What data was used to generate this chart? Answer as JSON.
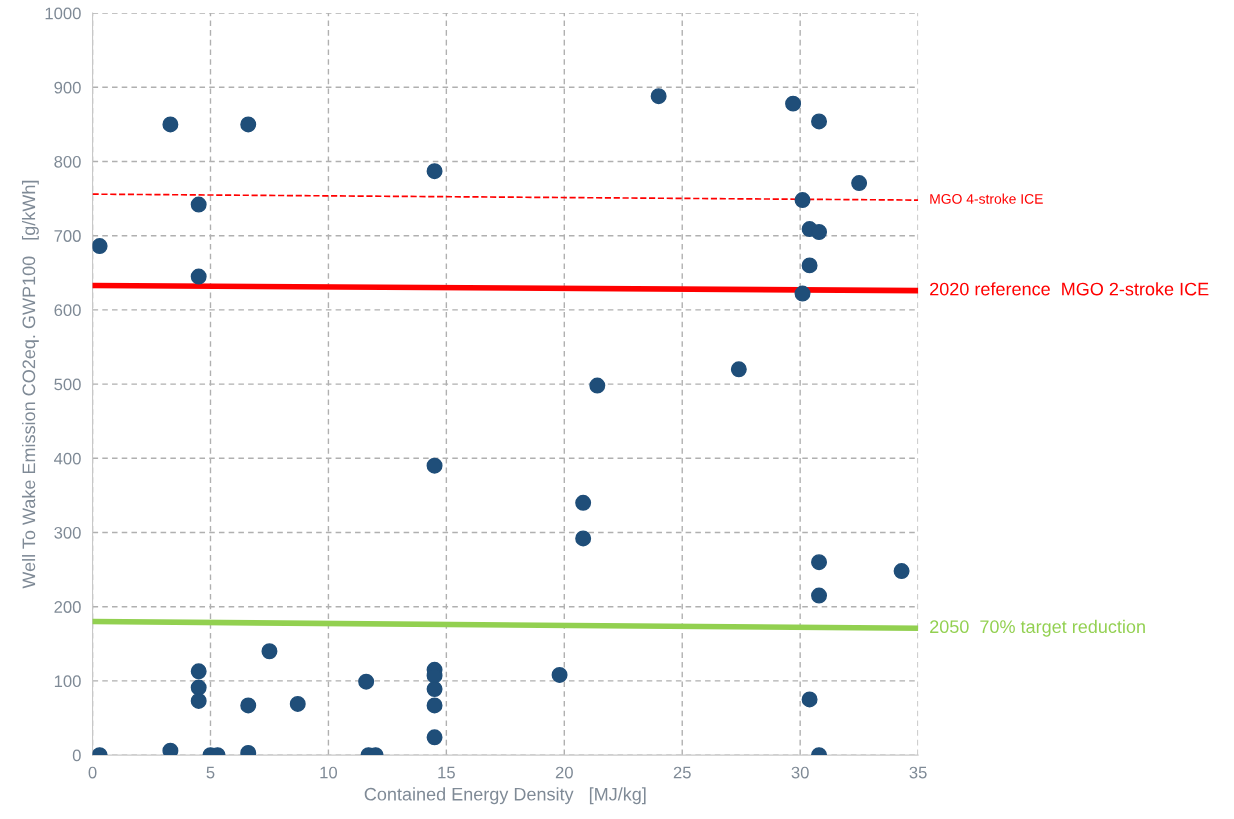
{
  "chart_data": {
    "type": "scatter",
    "xlabel": "Contained Energy Density   [MJ/kg]",
    "ylabel": "Well To Wake Emission CO2eq. GWP100   [g/kWh]",
    "xlim": [
      0,
      35
    ],
    "ylim": [
      0,
      1000
    ],
    "xticks": [
      0,
      5,
      10,
      15,
      20,
      25,
      30,
      35
    ],
    "yticks": [
      0,
      100,
      200,
      300,
      400,
      500,
      600,
      700,
      800,
      900,
      1000
    ],
    "grid": true,
    "series": [
      {
        "color": "#1f4e79",
        "marker": "circle",
        "x": [
          0.3,
          0.3,
          3.3,
          3.3,
          4.5,
          4.5,
          4.5,
          4.5,
          4.5,
          5.0,
          5.3,
          6.6,
          6.6,
          6.6,
          7.5,
          8.7,
          11.6,
          11.7,
          12.0,
          14.5,
          14.5,
          14.5,
          14.5,
          14.5,
          14.5,
          14.5,
          19.8,
          20.8,
          20.8,
          21.4,
          24.0,
          27.4,
          29.7,
          30.1,
          30.1,
          30.4,
          30.4,
          30.4,
          30.8,
          30.8,
          30.8,
          30.8,
          30.8,
          32.5,
          34.3
        ],
        "values": [
          0,
          686,
          850,
          6,
          742,
          645,
          113,
          91,
          73,
          0,
          0,
          850,
          67,
          3,
          140,
          69,
          99,
          0,
          0,
          787,
          390,
          115,
          107,
          89,
          67,
          24,
          108,
          340,
          292,
          498,
          888,
          520,
          878,
          748,
          622,
          709,
          660,
          75,
          854,
          705,
          260,
          215,
          0,
          771,
          248
        ]
      },
      {
        "type": "line",
        "marker": "none",
        "name": "MGO 4-stroke ICE",
        "color": "#ff0000",
        "line_style": "dashed",
        "x": [
          0,
          35
        ],
        "values": [
          756,
          748
        ]
      },
      {
        "type": "line",
        "marker": "none",
        "name": "2020 reference  MGO 2-stroke ICE",
        "color": "#ff0000",
        "line_style": "solid",
        "x": [
          0,
          35
        ],
        "values": [
          633,
          626
        ]
      },
      {
        "type": "line",
        "marker": "none",
        "name": "2050  70% target reduction",
        "color": "#92d050",
        "line_style": "solid",
        "x": [
          0,
          35
        ],
        "values": [
          180,
          171
        ]
      }
    ]
  }
}
